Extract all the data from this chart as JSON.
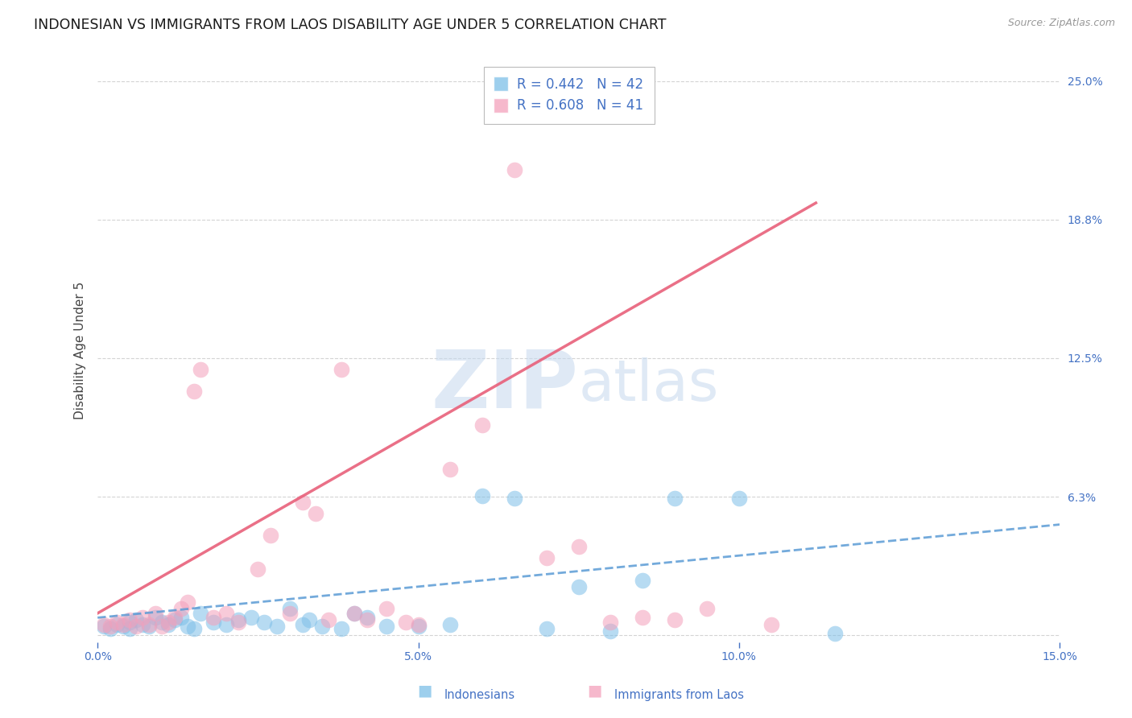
{
  "title": "INDONESIAN VS IMMIGRANTS FROM LAOS DISABILITY AGE UNDER 5 CORRELATION CHART",
  "source": "Source: ZipAtlas.com",
  "ylabel": "Disability Age Under 5",
  "xlim": [
    0.0,
    0.15
  ],
  "ylim": [
    -0.003,
    0.26
  ],
  "ytick_vals": [
    0.0,
    0.0625,
    0.125,
    0.1875,
    0.25
  ],
  "ytick_labels": [
    "",
    "6.3%",
    "12.5%",
    "18.8%",
    "25.0%"
  ],
  "xtick_vals": [
    0.0,
    0.05,
    0.1,
    0.15
  ],
  "xtick_labels": [
    "0.0%",
    "5.0%",
    "10.0%",
    "15.0%"
  ],
  "indonesian_color": "#7dbfe8",
  "laos_color": "#f4a0bb",
  "indonesian_line_color": "#5b9bd5",
  "laos_line_color": "#e8607a",
  "legend_R_indonesian": "R = 0.442",
  "legend_N_indonesian": "N = 42",
  "legend_R_laos": "R = 0.608",
  "legend_N_laos": "N = 41",
  "background_color": "#ffffff",
  "grid_color": "#d0d0d0",
  "tick_color": "#4472c4",
  "title_color": "#1a1a1a",
  "title_fontsize": 12.5,
  "axis_label_fontsize": 11,
  "tick_fontsize": 10,
  "source_fontsize": 9,
  "indo_x": [
    0.001,
    0.002,
    0.003,
    0.004,
    0.005,
    0.005,
    0.006,
    0.007,
    0.008,
    0.009,
    0.01,
    0.011,
    0.012,
    0.013,
    0.014,
    0.015,
    0.016,
    0.018,
    0.02,
    0.022,
    0.024,
    0.026,
    0.028,
    0.03,
    0.032,
    0.033,
    0.035,
    0.038,
    0.04,
    0.042,
    0.045,
    0.05,
    0.055,
    0.06,
    0.065,
    0.07,
    0.075,
    0.08,
    0.085,
    0.09,
    0.1,
    0.115
  ],
  "indo_y": [
    0.004,
    0.003,
    0.005,
    0.004,
    0.006,
    0.003,
    0.007,
    0.005,
    0.004,
    0.008,
    0.006,
    0.005,
    0.007,
    0.008,
    0.004,
    0.003,
    0.01,
    0.006,
    0.005,
    0.007,
    0.008,
    0.006,
    0.004,
    0.012,
    0.005,
    0.007,
    0.004,
    0.003,
    0.01,
    0.008,
    0.004,
    0.004,
    0.005,
    0.063,
    0.062,
    0.003,
    0.022,
    0.002,
    0.025,
    0.062,
    0.062,
    0.001
  ],
  "laos_x": [
    0.001,
    0.002,
    0.003,
    0.004,
    0.005,
    0.006,
    0.007,
    0.008,
    0.009,
    0.01,
    0.011,
    0.012,
    0.013,
    0.014,
    0.015,
    0.016,
    0.018,
    0.02,
    0.022,
    0.025,
    0.027,
    0.03,
    0.032,
    0.034,
    0.036,
    0.038,
    0.04,
    0.042,
    0.045,
    0.048,
    0.05,
    0.055,
    0.06,
    0.065,
    0.07,
    0.075,
    0.08,
    0.085,
    0.09,
    0.095,
    0.105
  ],
  "laos_y": [
    0.005,
    0.004,
    0.006,
    0.005,
    0.007,
    0.004,
    0.008,
    0.005,
    0.01,
    0.004,
    0.006,
    0.008,
    0.012,
    0.015,
    0.11,
    0.12,
    0.008,
    0.01,
    0.006,
    0.03,
    0.045,
    0.01,
    0.06,
    0.055,
    0.007,
    0.12,
    0.01,
    0.007,
    0.012,
    0.006,
    0.005,
    0.075,
    0.095,
    0.21,
    0.035,
    0.04,
    0.006,
    0.008,
    0.007,
    0.012,
    0.005
  ],
  "indo_trend_x0": 0.0,
  "indo_trend_x1": 0.15,
  "indo_trend_y0": 0.008,
  "indo_trend_y1": 0.05,
  "laos_trend_x0": 0.0,
  "laos_trend_x1": 0.112,
  "laos_trend_y0": 0.01,
  "laos_trend_y1": 0.195
}
